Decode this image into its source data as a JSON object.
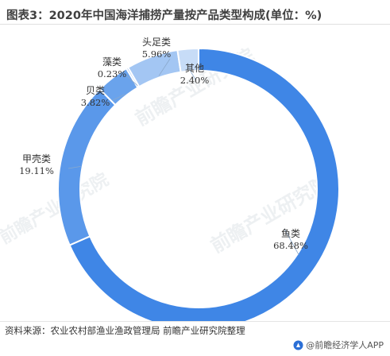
{
  "header": {
    "title": "图表3：2020年中国海洋捕捞产量按产品类型构成(单位：%)"
  },
  "footer": {
    "source": "资料来源：农业农村部渔业渔政管理局 前瞻产业研究院整理",
    "brand": "@前瞻经济学人APP"
  },
  "watermark": {
    "text": "前瞻产业研究院"
  },
  "colors": {
    "鱼类": "#3f86e6",
    "甲壳类": "#5a98ea",
    "贝类": "#6aa3ec",
    "藻类": "#7fb0ef",
    "头足类": "#a3c6f3",
    "其他": "#c7dcf7"
  },
  "chart_data": {
    "type": "pie",
    "donut": true,
    "unit": "%",
    "start": "12 o'clock",
    "direction": "clockwise",
    "legend": "none (labels beside slices)",
    "title": "图表3：2020年中国海洋捕捞产量按产品类型构成(单位：%)",
    "slices": [
      {
        "label": "鱼类",
        "value": 68.48,
        "value_label": "68.48%"
      },
      {
        "label": "甲壳类",
        "value": 19.11,
        "value_label": "19.11%"
      },
      {
        "label": "贝类",
        "value": 3.82,
        "value_label": "3.82%"
      },
      {
        "label": "藻类",
        "value": 0.23,
        "value_label": "0.23%"
      },
      {
        "label": "头足类",
        "value": 5.96,
        "value_label": "5.96%"
      },
      {
        "label": "其他",
        "value": 2.4,
        "value_label": "2.40%"
      }
    ]
  }
}
